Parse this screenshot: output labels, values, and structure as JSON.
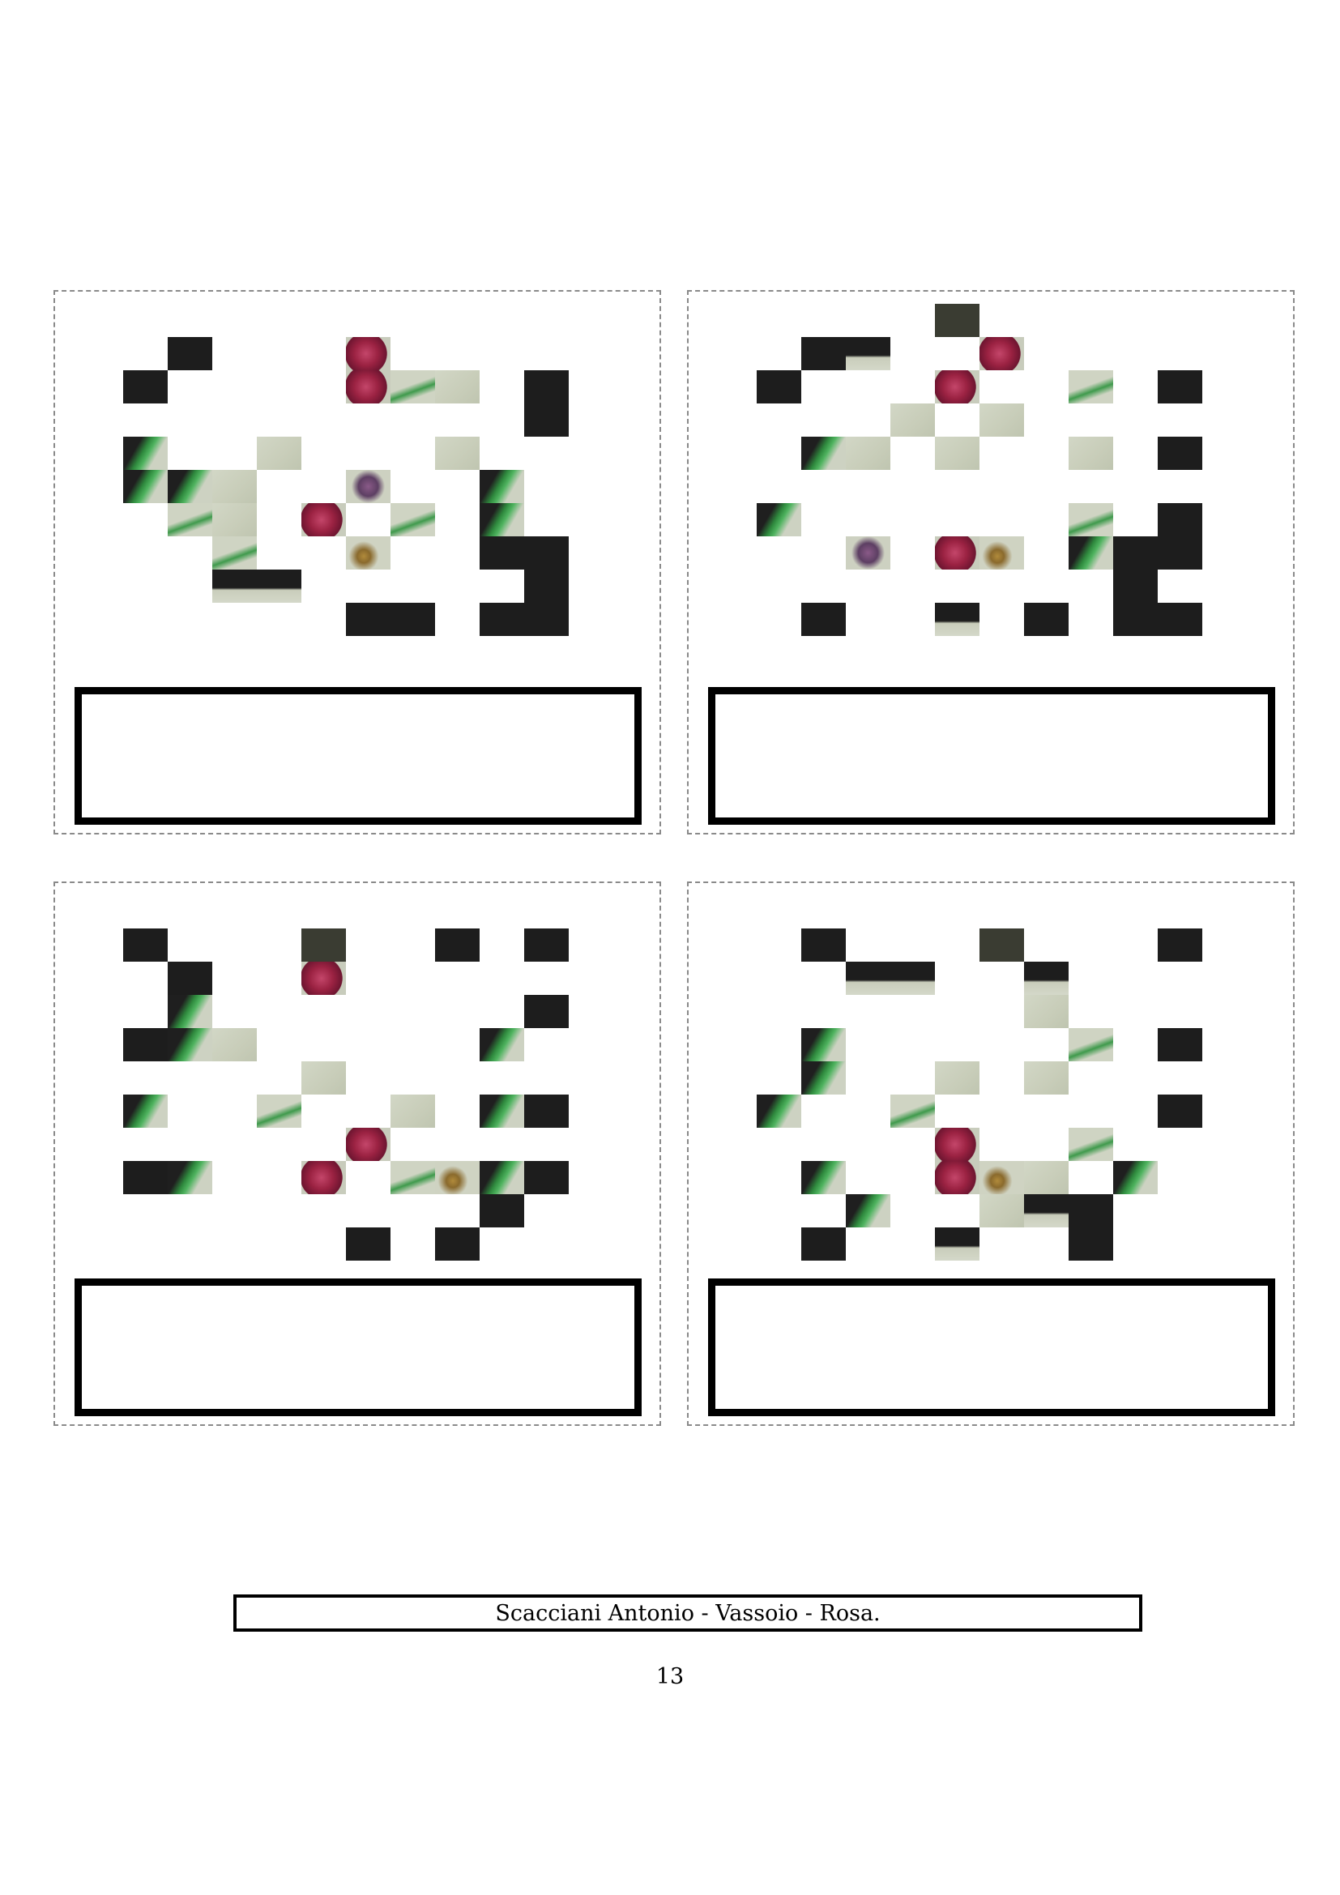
{
  "caption": "Scacciani Antonio - Vassoio - Rosa.",
  "page_number": "13",
  "card_count": 4
}
